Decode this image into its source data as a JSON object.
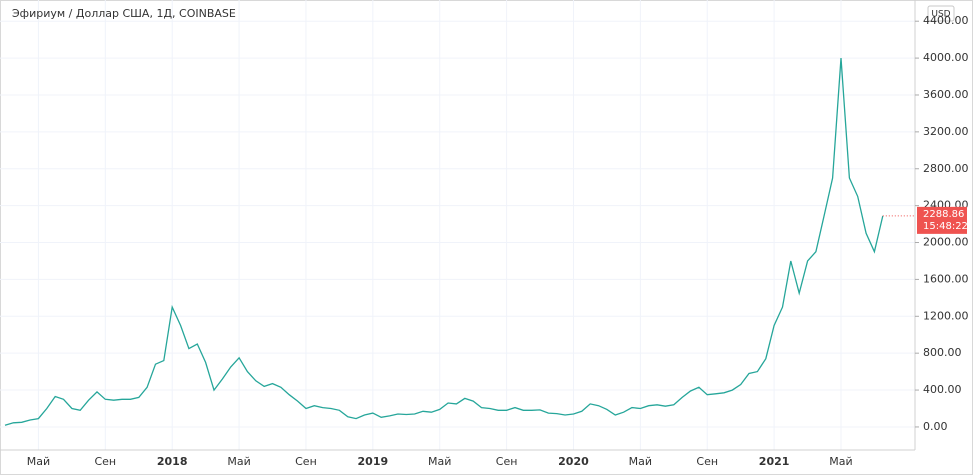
{
  "chart_data": {
    "type": "line",
    "title": "Эфириум / Доллар США, 1Д, COINBASE",
    "currency": "USD",
    "last_price_label": "2288.86",
    "countdown": "15:48:22",
    "color": "#26a69a",
    "price_label_color": "#ef5350",
    "grid": true,
    "categories": [
      null,
      null,
      null,
      null,
      "Май",
      null,
      null,
      null,
      null,
      null,
      null,
      null,
      "Сен",
      null,
      null,
      null,
      null,
      null,
      null,
      null,
      "2018",
      null,
      null,
      null,
      null,
      null,
      null,
      null,
      "Май",
      null,
      null,
      null,
      null,
      null,
      null,
      null,
      "Сен",
      null,
      null,
      null,
      null,
      null,
      null,
      null,
      "2019",
      null,
      null,
      null,
      null,
      null,
      null,
      null,
      "Май",
      null,
      null,
      null,
      null,
      null,
      null,
      null,
      "Сен",
      null,
      null,
      null,
      null,
      null,
      null,
      null,
      "2020",
      null,
      null,
      null,
      null,
      null,
      null,
      null,
      "Май",
      null,
      null,
      null,
      null,
      null,
      null,
      null,
      "Сен",
      null,
      null,
      null,
      null,
      null,
      null,
      null,
      "2021",
      null,
      null,
      null,
      null,
      null,
      null,
      null,
      "Май",
      null,
      null,
      null,
      null,
      null
    ],
    "values": [
      18,
      45,
      50,
      75,
      90,
      200,
      330,
      300,
      200,
      180,
      290,
      380,
      300,
      290,
      300,
      300,
      320,
      430,
      680,
      720,
      1300,
      1100,
      850,
      900,
      700,
      400,
      520,
      650,
      750,
      600,
      500,
      440,
      470,
      430,
      350,
      280,
      200,
      230,
      210,
      200,
      180,
      110,
      90,
      130,
      150,
      105,
      120,
      140,
      135,
      140,
      170,
      160,
      190,
      260,
      250,
      310,
      280,
      210,
      200,
      180,
      180,
      210,
      180,
      180,
      185,
      150,
      145,
      130,
      140,
      170,
      250,
      230,
      190,
      130,
      160,
      210,
      200,
      230,
      240,
      225,
      240,
      320,
      390,
      430,
      350,
      360,
      370,
      400,
      460,
      580,
      600,
      740,
      1100,
      1300,
      1800,
      1450,
      1800,
      1900,
      2300,
      2700,
      4000,
      2700,
      2500,
      2100,
      1900,
      2289
    ],
    "ylim": [
      -250,
      4630
    ],
    "yticks": [
      {
        "value": 0,
        "label": "0.00"
      },
      {
        "value": 400,
        "label": "400.00"
      },
      {
        "value": 800,
        "label": "800.00"
      },
      {
        "value": 1200,
        "label": "1200.00"
      },
      {
        "value": 1600,
        "label": "1600.00"
      },
      {
        "value": 2000,
        "label": "2000.00"
      },
      {
        "value": 2400,
        "label": "2400.00"
      },
      {
        "value": 2800,
        "label": "2800.00"
      },
      {
        "value": 3200,
        "label": "3200.00"
      },
      {
        "value": 3600,
        "label": "3600.00"
      },
      {
        "value": 4000,
        "label": "4000.00"
      },
      {
        "value": 4400,
        "label": "4400.00"
      }
    ]
  }
}
